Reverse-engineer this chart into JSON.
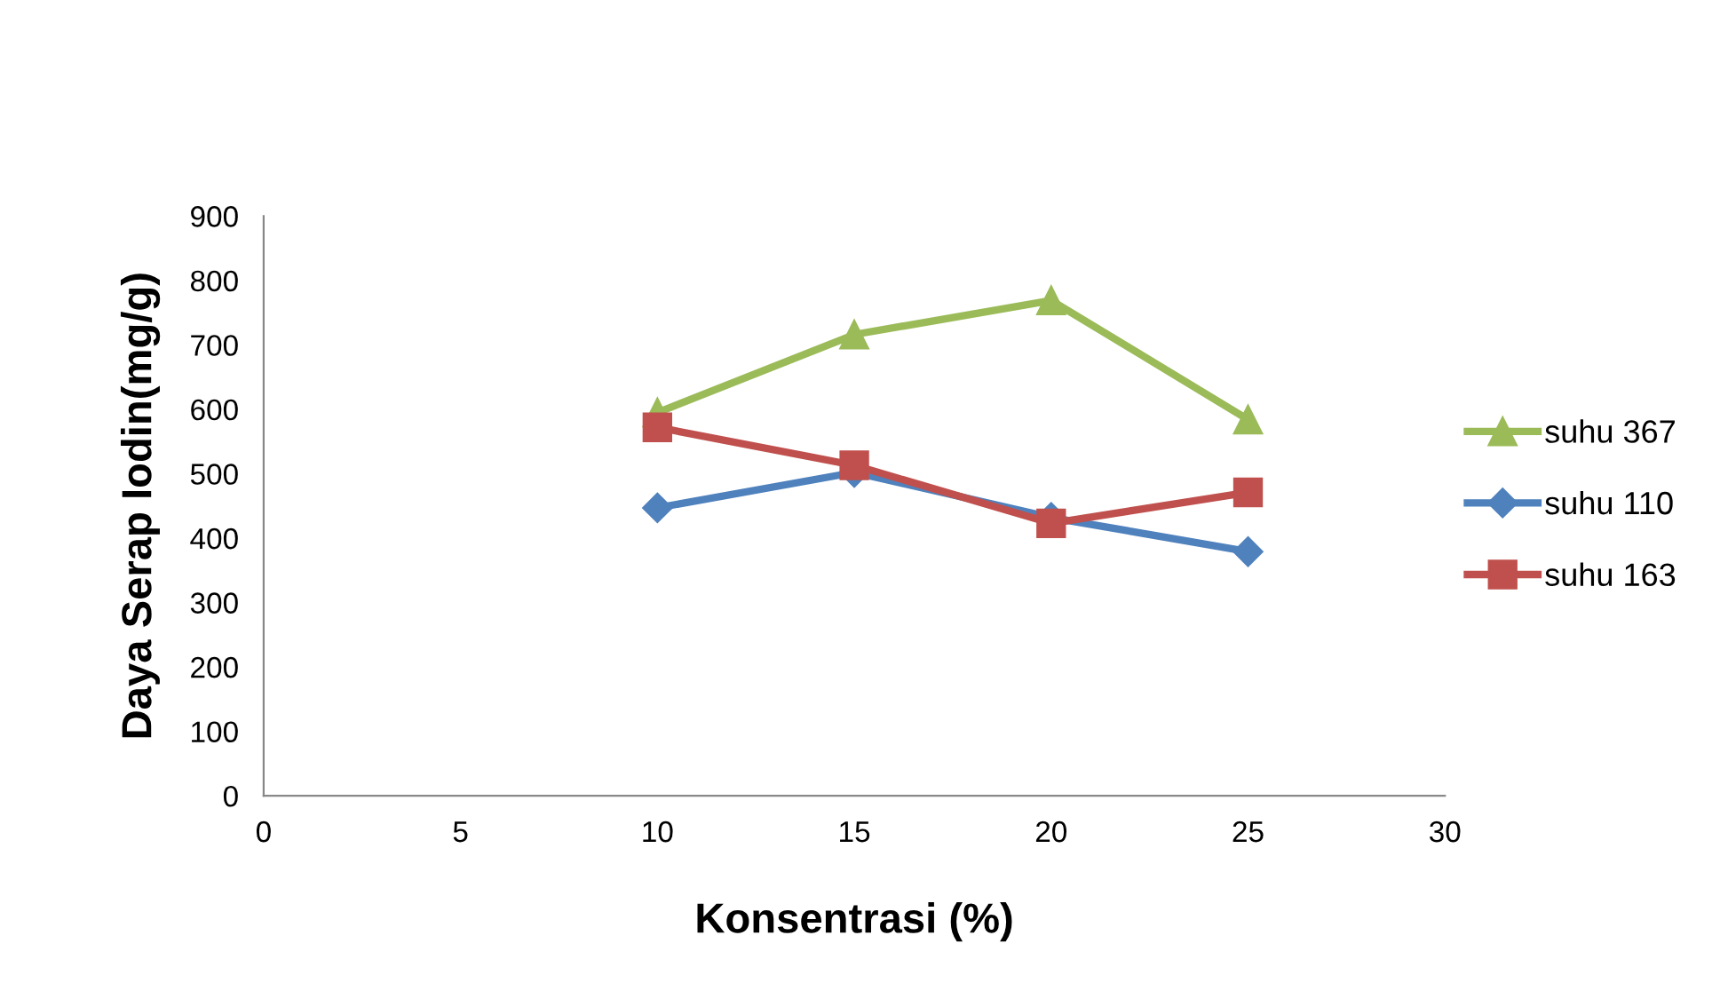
{
  "chart_data": {
    "type": "line",
    "xlabel": "Konsentrasi (%)",
    "ylabel": "Daya Serap Iodin(mg/g)",
    "x": [
      10,
      15,
      20,
      25
    ],
    "series": [
      {
        "name": "suhu 367",
        "color": "#9bbb59",
        "marker": "triangle",
        "values": [
          595,
          716,
          769,
          584
        ]
      },
      {
        "name": "suhu 110",
        "color": "#4f81bd",
        "marker": "diamond",
        "values": [
          447,
          502,
          432,
          379
        ]
      },
      {
        "name": "suhu 163",
        "color": "#c0504d",
        "marker": "square",
        "values": [
          572,
          513,
          423,
          471
        ]
      }
    ],
    "xlim": [
      0,
      30
    ],
    "xticks": [
      0,
      5,
      10,
      15,
      20,
      25,
      30
    ],
    "ylim": [
      0,
      900
    ],
    "yticks": [
      0,
      100,
      200,
      300,
      400,
      500,
      600,
      700,
      800,
      900
    ],
    "grid": false,
    "legend": "right"
  }
}
